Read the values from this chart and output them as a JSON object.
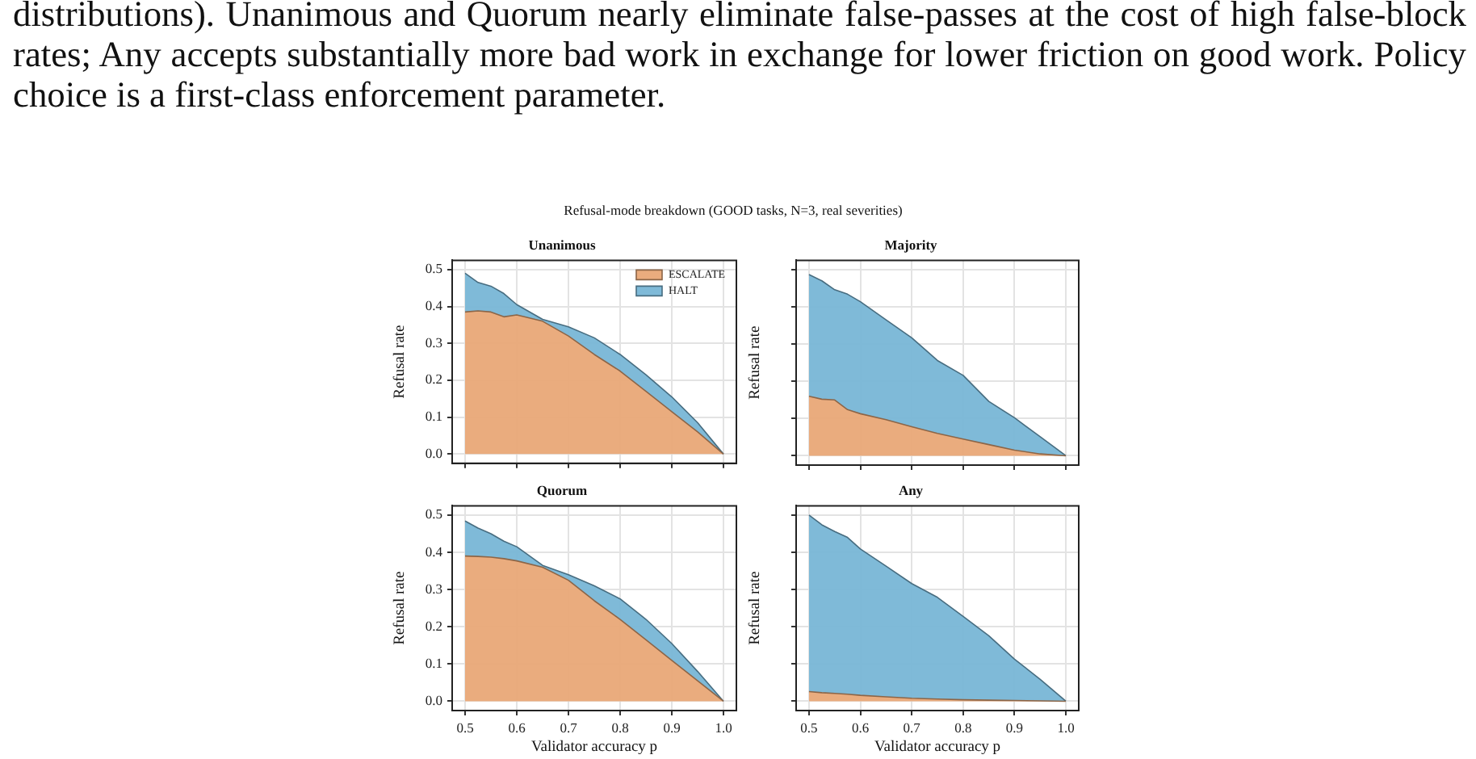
{
  "chart_data": [
    {
      "type": "other",
      "annotations": [
        "distributions). Unanimous and Quorum nearly eliminate false-passes at the cost of high false-block rates; Any accepts substantially more bad work in exchange for lower friction on good work. Policy choice is a first-class enforcement parameter.",
        "Refusal-mode breakdown (GOOD tasks, N=3, real severities)"
      ]
    },
    {
      "type": "area",
      "title": "Unanimous",
      "ylabel": "Refusal rate",
      "stacked": true,
      "grid": true,
      "legend": "top right",
      "tick_labels": "y",
      "x": [
        0.5,
        0.525,
        0.55,
        0.575,
        0.6,
        0.65,
        0.7,
        0.75,
        0.8,
        0.85,
        0.9,
        0.95,
        1.0
      ],
      "xlim": [
        0.475,
        1.025
      ],
      "xticks": [
        {
          "value": 0.5,
          "label": null
        },
        {
          "value": 0.6,
          "label": null
        },
        {
          "value": 0.7,
          "label": null
        },
        {
          "value": 0.8,
          "label": null
        },
        {
          "value": 0.9,
          "label": null
        },
        {
          "value": 1.0,
          "label": null
        }
      ],
      "ylim": [
        -0.025,
        0.525
      ],
      "yticks": [
        {
          "value": 0,
          "label": "0.0"
        },
        {
          "value": 0.1,
          "label": "0.1"
        },
        {
          "value": 0.2,
          "label": "0.2"
        },
        {
          "value": 0.3,
          "label": "0.3"
        },
        {
          "value": 0.4,
          "label": "0.4"
        },
        {
          "value": 0.5,
          "label": "0.5"
        }
      ],
      "series": [
        {
          "name": "ESCALATE",
          "color": "#e9a877",
          "values": [
            0.385,
            0.388,
            0.385,
            0.372,
            0.377,
            0.36,
            0.32,
            0.27,
            0.225,
            0.17,
            0.115,
            0.06,
            0
          ]
        },
        {
          "name": "HALT",
          "color": "#78b6d6",
          "values": [
            0.105,
            0.077,
            0.07,
            0.063,
            0.028,
            0.005,
            0.025,
            0.045,
            0.045,
            0.045,
            0.04,
            0.025,
            0
          ]
        }
      ]
    },
    {
      "type": "area",
      "title": "Majority",
      "ylabel": "Refusal rate",
      "stacked": true,
      "grid": true,
      "tick_labels": false,
      "x": [
        0.5,
        0.525,
        0.55,
        0.575,
        0.6,
        0.65,
        0.7,
        0.75,
        0.8,
        0.85,
        0.9,
        0.95,
        1.0
      ],
      "xlim": [
        0.475,
        1.025
      ],
      "xticks": [
        {
          "value": 0.5,
          "label": null
        },
        {
          "value": 0.6,
          "label": null
        },
        {
          "value": 0.7,
          "label": null
        },
        {
          "value": 0.8,
          "label": null
        },
        {
          "value": 0.9,
          "label": null
        },
        {
          "value": 1.0,
          "label": null
        }
      ],
      "ylim": [
        -0.025,
        0.525
      ],
      "yticks": [
        {
          "value": 0,
          "label": null
        },
        {
          "value": 0.1,
          "label": null
        },
        {
          "value": 0.2,
          "label": null
        },
        {
          "value": 0.3,
          "label": null
        },
        {
          "value": 0.4,
          "label": null
        },
        {
          "value": 0.5,
          "label": null
        }
      ],
      "series": [
        {
          "color": "#e9a877",
          "values": [
            0.16,
            0.152,
            0.15,
            0.124,
            0.113,
            0.097,
            0.078,
            0.06,
            0.045,
            0.03,
            0.015,
            0.005,
            0
          ]
        },
        {
          "color": "#78b6d6",
          "values": [
            0.327,
            0.318,
            0.296,
            0.31,
            0.301,
            0.268,
            0.239,
            0.196,
            0.171,
            0.116,
            0.087,
            0.046,
            0
          ]
        }
      ]
    },
    {
      "type": "area",
      "title": "Quorum",
      "ylabel": "Refusal rate",
      "xlabel": "Validator accuracy p",
      "stacked": true,
      "grid": true,
      "x": [
        0.5,
        0.525,
        0.55,
        0.575,
        0.6,
        0.65,
        0.7,
        0.75,
        0.8,
        0.85,
        0.9,
        0.95,
        1.0
      ],
      "xlim": [
        0.475,
        1.025
      ],
      "xticks": [
        {
          "value": 0.5,
          "label": "0.5"
        },
        {
          "value": 0.6,
          "label": "0.6"
        },
        {
          "value": 0.7,
          "label": "0.7"
        },
        {
          "value": 0.8,
          "label": "0.8"
        },
        {
          "value": 0.9,
          "label": "0.9"
        },
        {
          "value": 1.0,
          "label": "1.0"
        }
      ],
      "ylim": [
        -0.025,
        0.525
      ],
      "yticks": [
        {
          "value": 0,
          "label": "0.0"
        },
        {
          "value": 0.1,
          "label": "0.1"
        },
        {
          "value": 0.2,
          "label": "0.2"
        },
        {
          "value": 0.3,
          "label": "0.3"
        },
        {
          "value": 0.4,
          "label": "0.4"
        },
        {
          "value": 0.5,
          "label": "0.5"
        }
      ],
      "series": [
        {
          "color": "#e9a877",
          "values": [
            0.39,
            0.389,
            0.387,
            0.383,
            0.377,
            0.36,
            0.325,
            0.27,
            0.22,
            0.165,
            0.11,
            0.055,
            0
          ]
        },
        {
          "color": "#78b6d6",
          "values": [
            0.094,
            0.076,
            0.063,
            0.047,
            0.038,
            0.005,
            0.015,
            0.04,
            0.055,
            0.055,
            0.045,
            0.025,
            0
          ]
        }
      ]
    },
    {
      "type": "area",
      "title": "Any",
      "ylabel": "Refusal rate",
      "xlabel": "Validator accuracy p",
      "stacked": true,
      "grid": true,
      "tick_labels": "x",
      "x": [
        0.5,
        0.525,
        0.55,
        0.575,
        0.6,
        0.65,
        0.7,
        0.75,
        0.8,
        0.85,
        0.9,
        0.95,
        1.0
      ],
      "xlim": [
        0.475,
        1.025
      ],
      "xticks": [
        {
          "value": 0.5,
          "label": "0.5"
        },
        {
          "value": 0.6,
          "label": "0.6"
        },
        {
          "value": 0.7,
          "label": "0.7"
        },
        {
          "value": 0.8,
          "label": "0.8"
        },
        {
          "value": 0.9,
          "label": "0.9"
        },
        {
          "value": 1.0,
          "label": "1.0"
        }
      ],
      "ylim": [
        -0.025,
        0.525
      ],
      "yticks": [
        {
          "value": 0,
          "label": null
        },
        {
          "value": 0.1,
          "label": null
        },
        {
          "value": 0.2,
          "label": null
        },
        {
          "value": 0.3,
          "label": null
        },
        {
          "value": 0.4,
          "label": null
        },
        {
          "value": 0.5,
          "label": null
        }
      ],
      "series": [
        {
          "color": "#e9a877",
          "values": [
            0.026,
            0.023,
            0.021,
            0.019,
            0.016,
            0.012,
            0.008,
            0.006,
            0.004,
            0.003,
            0.002,
            0.001,
            0
          ]
        },
        {
          "color": "#78b6d6",
          "values": [
            0.474,
            0.451,
            0.435,
            0.421,
            0.393,
            0.351,
            0.308,
            0.273,
            0.224,
            0.173,
            0.111,
            0.058,
            0
          ]
        }
      ]
    }
  ]
}
